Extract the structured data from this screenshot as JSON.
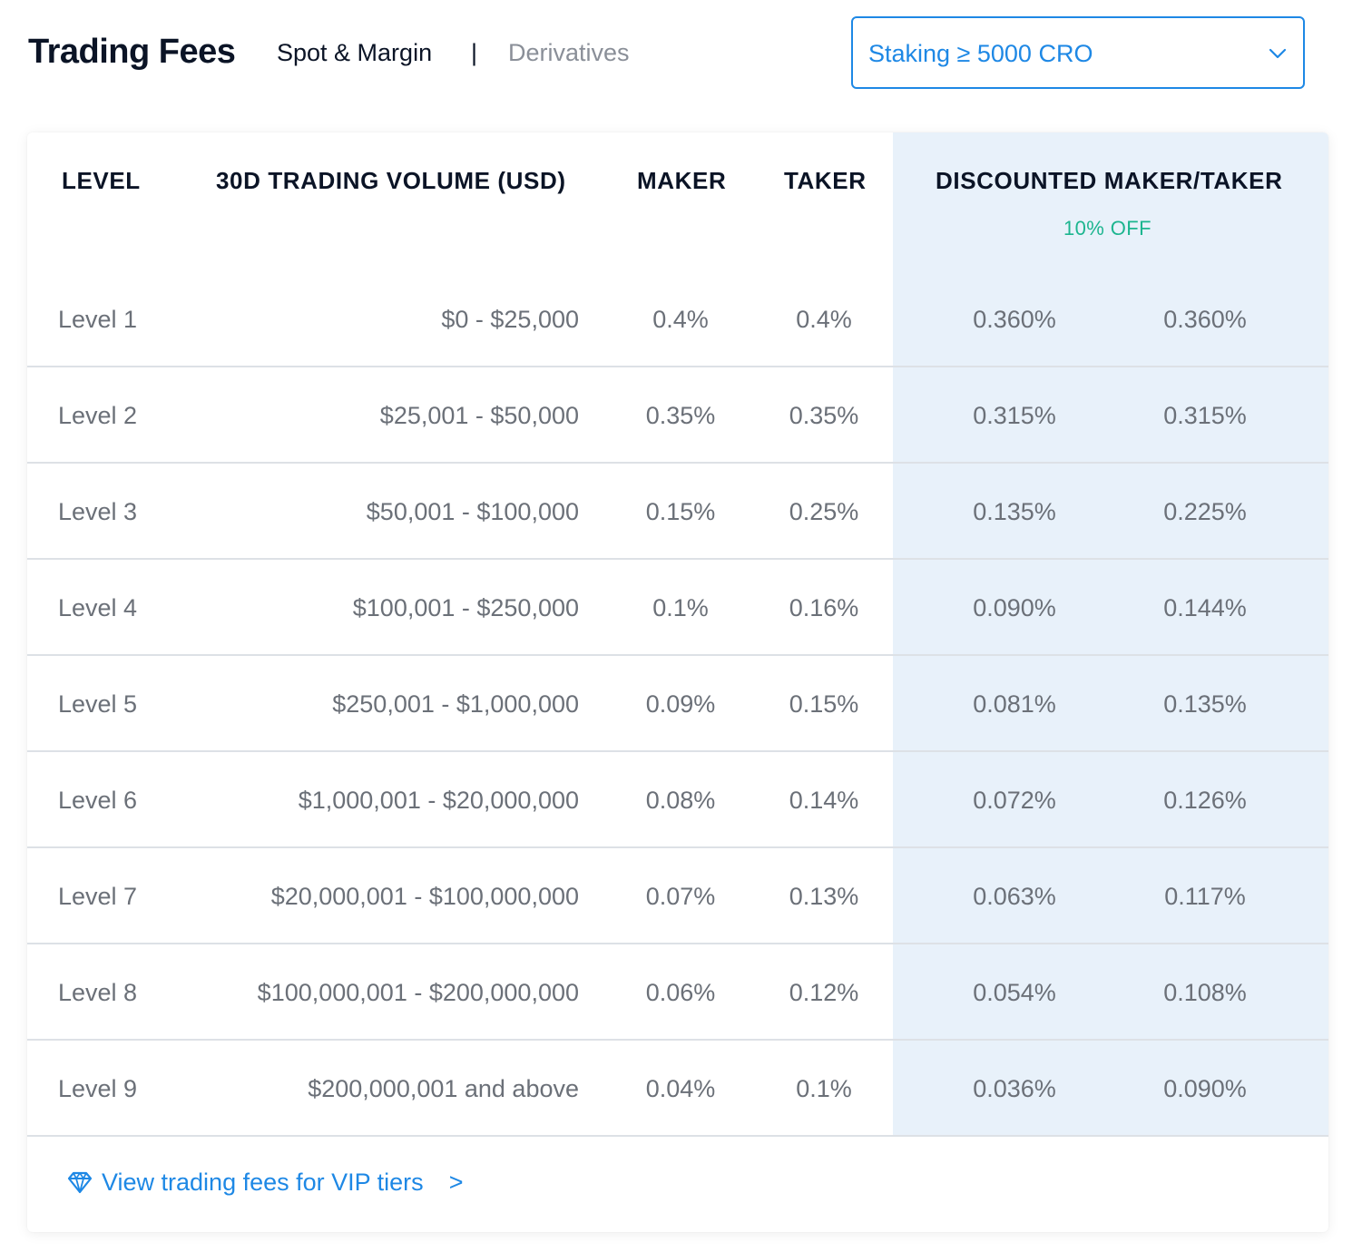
{
  "header": {
    "title": "Trading Fees",
    "tabs": [
      {
        "label": "Spot & Margin",
        "active": true
      },
      {
        "label": "Derivatives",
        "active": false
      }
    ],
    "separator": "|",
    "staking_select": {
      "value": "Staking ≥ 5000 CRO"
    }
  },
  "table": {
    "columns": {
      "level": "LEVEL",
      "volume": "30D TRADING VOLUME (USD)",
      "maker": "MAKER",
      "taker": "TAKER",
      "discounted": "DISCOUNTED MAKER/TAKER",
      "discount_badge": "10% OFF"
    },
    "rows": [
      {
        "level": "Level 1",
        "volume": "$0 - $25,000",
        "maker": "0.4%",
        "taker": "0.4%",
        "disc_maker": "0.360%",
        "disc_taker": "0.360%"
      },
      {
        "level": "Level 2",
        "volume": "$25,001 - $50,000",
        "maker": "0.35%",
        "taker": "0.35%",
        "disc_maker": "0.315%",
        "disc_taker": "0.315%"
      },
      {
        "level": "Level 3",
        "volume": "$50,001 - $100,000",
        "maker": "0.15%",
        "taker": "0.25%",
        "disc_maker": "0.135%",
        "disc_taker": "0.225%"
      },
      {
        "level": "Level 4",
        "volume": "$100,001 - $250,000",
        "maker": "0.1%",
        "taker": "0.16%",
        "disc_maker": "0.090%",
        "disc_taker": "0.144%"
      },
      {
        "level": "Level 5",
        "volume": "$250,001 - $1,000,000",
        "maker": "0.09%",
        "taker": "0.15%",
        "disc_maker": "0.081%",
        "disc_taker": "0.135%"
      },
      {
        "level": "Level 6",
        "volume": "$1,000,001 - $20,000,000",
        "maker": "0.08%",
        "taker": "0.14%",
        "disc_maker": "0.072%",
        "disc_taker": "0.126%"
      },
      {
        "level": "Level 7",
        "volume": "$20,000,001 - $100,000,000",
        "maker": "0.07%",
        "taker": "0.13%",
        "disc_maker": "0.063%",
        "disc_taker": "0.117%"
      },
      {
        "level": "Level 8",
        "volume": "$100,000,001 - $200,000,000",
        "maker": "0.06%",
        "taker": "0.12%",
        "disc_maker": "0.054%",
        "disc_taker": "0.108%"
      },
      {
        "level": "Level 9",
        "volume": "$200,000,001 and above",
        "maker": "0.04%",
        "taker": "0.1%",
        "disc_maker": "0.036%",
        "disc_taker": "0.090%"
      }
    ]
  },
  "footer": {
    "vip_link": "View trading fees for VIP tiers",
    "arrow": ">",
    "icon": "diamond-icon"
  },
  "colors": {
    "accent": "#1e88e5",
    "discount_green": "#1cb58f",
    "discount_bg": "#e8f1fa"
  }
}
